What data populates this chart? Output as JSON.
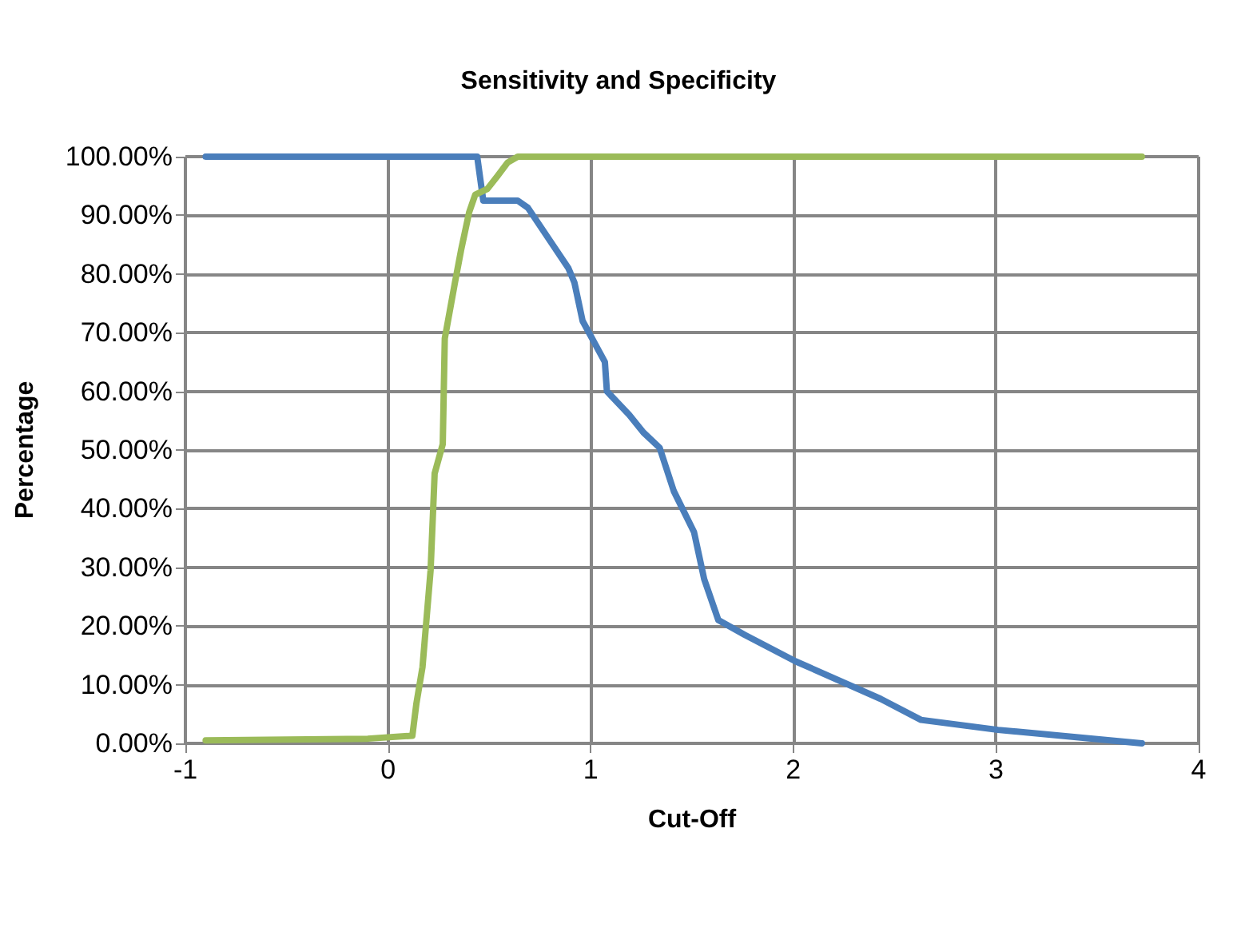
{
  "chart_data": {
    "type": "line",
    "title": "Sensitivity and Specificity",
    "xlabel": "Cut-Off",
    "ylabel": "Percentage",
    "series": [
      {
        "color": "#4a7ebb",
        "x": [
          -0.9,
          0.44,
          0.46,
          0.47,
          0.64,
          0.69,
          0.89,
          0.92,
          0.96,
          1.07,
          1.08,
          1.19,
          1.26,
          1.34,
          1.41,
          1.51,
          1.56,
          1.63,
          1.76,
          2.01,
          2.43,
          2.63,
          3.01,
          3.72
        ],
        "values": [
          100,
          100,
          95,
          92.5,
          92.5,
          91.3,
          81,
          78.5,
          72,
          65,
          60,
          56,
          53,
          50.4,
          43,
          36,
          28,
          21,
          18.5,
          14,
          7.6,
          4,
          2.3,
          0
        ]
      },
      {
        "color": "#9bbb59",
        "x": [
          -0.9,
          -0.1,
          0.12,
          0.14,
          0.17,
          0.21,
          0.23,
          0.27,
          0.28,
          0.33,
          0.36,
          0.4,
          0.43,
          0.49,
          0.54,
          0.59,
          0.64,
          3.72
        ],
        "values": [
          0.5,
          0.8,
          1.3,
          6.8,
          13,
          29.5,
          46,
          51,
          69,
          78.5,
          84,
          90.5,
          93.5,
          94.5,
          96.7,
          99,
          100,
          100
        ]
      }
    ],
    "xlim": [
      -1,
      4
    ],
    "xticks": [
      -1,
      0,
      1,
      2,
      3,
      4
    ],
    "ylim": [
      0,
      100
    ],
    "yticks": [
      {
        "value": 0,
        "label": "0.00%"
      },
      {
        "value": 10,
        "label": "10.00%"
      },
      {
        "value": 20,
        "label": "20.00%"
      },
      {
        "value": 30,
        "label": "30.00%"
      },
      {
        "value": 40,
        "label": "40.00%"
      },
      {
        "value": 50,
        "label": "50.00%"
      },
      {
        "value": 60,
        "label": "60.00%"
      },
      {
        "value": 70,
        "label": "70.00%"
      },
      {
        "value": 80,
        "label": "80.00%"
      },
      {
        "value": 90,
        "label": "90.00%"
      },
      {
        "value": 100,
        "label": "100.00%"
      }
    ],
    "grid": true,
    "marker": "none",
    "line_style": "solid"
  }
}
